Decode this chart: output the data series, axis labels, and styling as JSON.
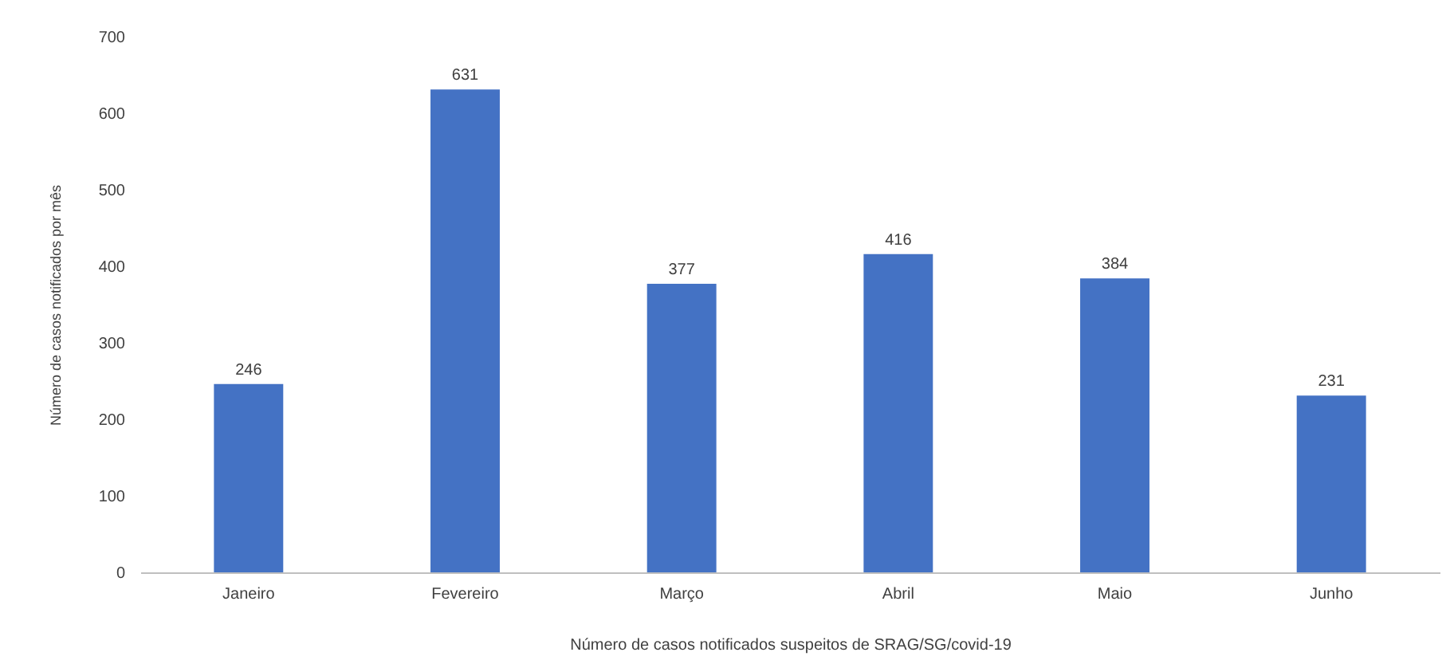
{
  "chart_data": {
    "type": "bar",
    "xlabel": "Número de casos notificados suspeitos de SRAG/SG/covid-19",
    "ylabel": "Número de casos notificados por mês",
    "categories": [
      "Janeiro",
      "Fevereiro",
      "Março",
      "Abril",
      "Maio",
      "Junho"
    ],
    "values": [
      246,
      631,
      377,
      416,
      384,
      231
    ],
    "color": "#4472c4",
    "ylim": [
      0,
      700
    ],
    "yticks": [
      0,
      100,
      200,
      300,
      400,
      500,
      600,
      700
    ],
    "grid": false,
    "data_labels": true
  }
}
